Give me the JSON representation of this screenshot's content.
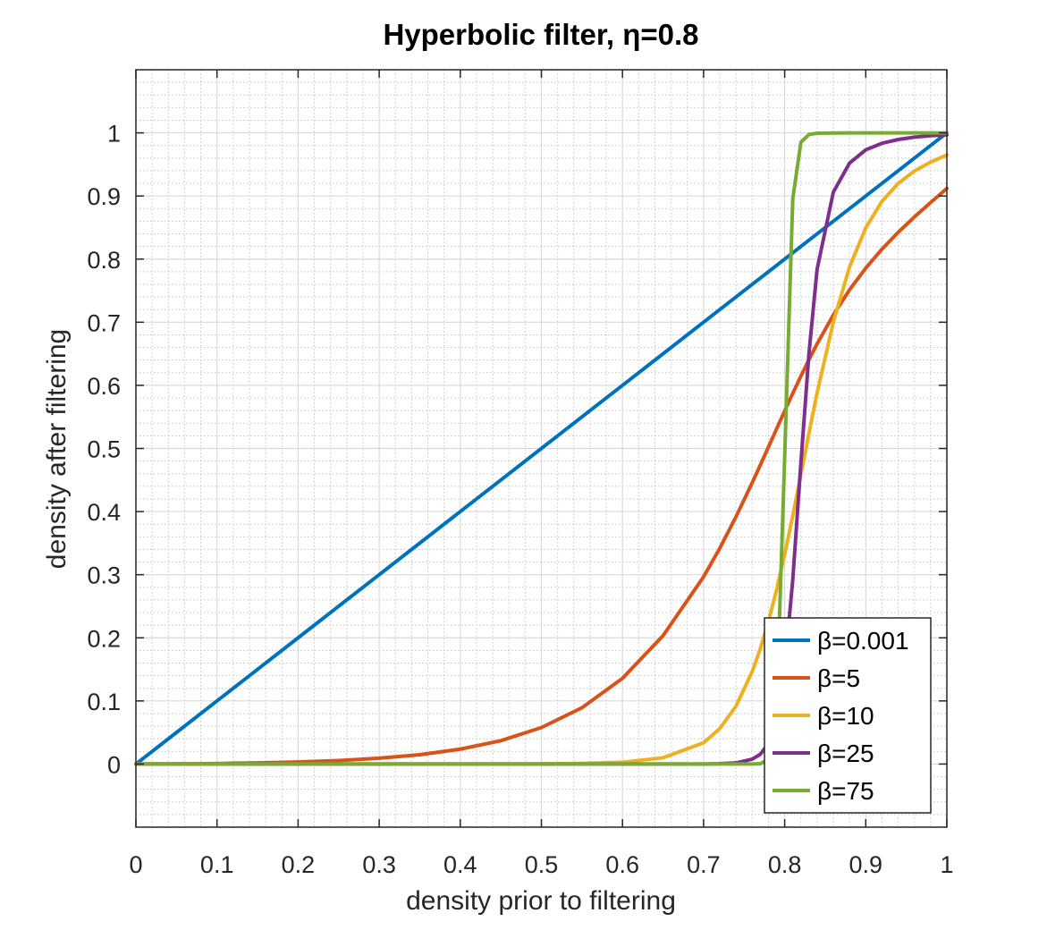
{
  "chart_data": {
    "type": "line",
    "title": "Hyperbolic filter, η=0.8",
    "xlabel": "density prior to filtering",
    "ylabel": "density after filtering",
    "xlim": [
      0,
      1
    ],
    "ylim": [
      -0.1,
      1.1
    ],
    "xticks": [
      0,
      0.1,
      0.2,
      0.3,
      0.4,
      0.5,
      0.6,
      0.7,
      0.8,
      0.9,
      1
    ],
    "xtick_labels": [
      "0",
      "0.1",
      "0.2",
      "0.3",
      "0.4",
      "0.5",
      "0.6",
      "0.7",
      "0.8",
      "0.9",
      "1"
    ],
    "yticks": [
      0,
      0.1,
      0.2,
      0.3,
      0.4,
      0.5,
      0.6,
      0.7,
      0.8,
      0.9,
      1
    ],
    "ytick_labels": [
      "0",
      "0.1",
      "0.2",
      "0.3",
      "0.4",
      "0.5",
      "0.6",
      "0.7",
      "0.8",
      "0.9",
      "1"
    ],
    "grid": "major and minor",
    "legend_location": "bottom-right",
    "x": [
      0,
      0.05,
      0.1,
      0.15,
      0.2,
      0.25,
      0.3,
      0.35,
      0.4,
      0.45,
      0.5,
      0.55,
      0.6,
      0.65,
      0.7,
      0.72,
      0.74,
      0.76,
      0.77,
      0.78,
      0.79,
      0.8,
      0.81,
      0.82,
      0.83,
      0.84,
      0.86,
      0.88,
      0.9,
      0.92,
      0.94,
      0.96,
      0.98,
      1
    ],
    "series": [
      {
        "name": "β=0.001",
        "color": "#0072BD",
        "values": [
          0,
          0.05,
          0.1,
          0.15,
          0.2,
          0.25,
          0.3,
          0.35,
          0.4,
          0.45,
          0.5,
          0.55,
          0.6,
          0.65,
          0.7,
          0.72,
          0.74,
          0.76,
          0.77,
          0.78,
          0.79,
          0.8,
          0.81,
          0.82,
          0.83,
          0.84,
          0.86,
          0.88,
          0.9,
          0.92,
          0.94,
          0.96,
          0.98,
          1
        ]
      },
      {
        "name": "β=5",
        "color": "#D95319",
        "values": [
          0,
          0.0003,
          0.0008,
          0.0018,
          0.0033,
          0.0056,
          0.0092,
          0.0148,
          0.0236,
          0.037,
          0.0578,
          0.0892,
          0.1358,
          0.2033,
          0.2966,
          0.3419,
          0.3919,
          0.4458,
          0.4738,
          0.5023,
          0.5309,
          0.5594,
          0.5874,
          0.6146,
          0.6408,
          0.6657,
          0.7115,
          0.7514,
          0.7858,
          0.8158,
          0.8425,
          0.8668,
          0.8897,
          0.912
        ]
      },
      {
        "name": "β=10",
        "color": "#EDB120",
        "values": [
          0,
          0,
          0,
          0,
          0,
          0,
          0,
          0,
          0,
          0.0001,
          0.0003,
          0.0009,
          0.0029,
          0.0099,
          0.0337,
          0.0561,
          0.0918,
          0.1466,
          0.1829,
          0.226,
          0.2758,
          0.332,
          0.3935,
          0.4585,
          0.5242,
          0.5881,
          0.7003,
          0.7875,
          0.8495,
          0.8916,
          0.9199,
          0.9395,
          0.9537,
          0.9649
        ]
      },
      {
        "name": "β=25",
        "color": "#7E2F8E",
        "values": [
          0,
          0,
          0,
          0,
          0,
          0,
          0,
          0,
          0,
          0,
          0,
          0,
          0,
          0,
          0.0001,
          0.0006,
          0.0018,
          0.0078,
          0.0155,
          0.0326,
          0.0731,
          0.151,
          0.2922,
          0.4766,
          0.6514,
          0.7839,
          0.9061,
          0.9521,
          0.9731,
          0.9835,
          0.9895,
          0.9932,
          0.9955,
          0.9969
        ]
      },
      {
        "name": "β=75",
        "color": "#77AC30",
        "values": [
          0,
          0,
          0,
          0,
          0,
          0,
          0,
          0,
          0,
          0,
          0,
          0,
          0,
          0,
          0,
          0,
          0,
          0.0001,
          0.0006,
          0.0078,
          0.0889,
          0.4855,
          0.8955,
          0.9851,
          0.9975,
          0.9994,
          0.9998,
          0.9999,
          1,
          1,
          1,
          1,
          1,
          1
        ]
      }
    ]
  }
}
